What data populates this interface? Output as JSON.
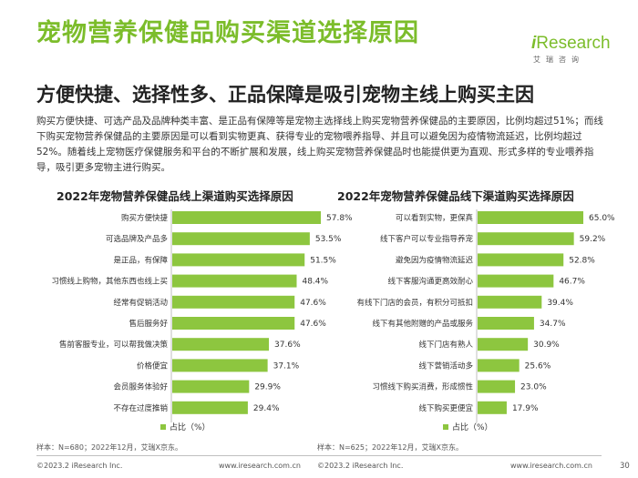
{
  "header": {
    "title": "宠物营养保健品购买渠道选择原因",
    "subtitle": "方便快捷、选择性多、正品保障是吸引宠物主线上购买主因",
    "paragraph": "购买方便快捷、可选产品及品牌种类丰富、是正品有保障等是宠物主选择线上购买宠物营养保健品的主要原因，比例均超过51%；而线下购买宠物营养保健品的主要原因是可以看到实物更真、获得专业的宠物喂养指导、并且可以避免因为疫情物流延迟，比例均超过52%。随着线上宠物医疗保健服务和平台的不断扩展和发展，线上购买宠物营养保健品时也能提供更为直观、形式多样的专业喂养指导，吸引更多宠物主进行购买。"
  },
  "logo": {
    "brand_prefix": "i",
    "brand_rest": "Research",
    "chinese": "艾瑞咨询"
  },
  "colors": {
    "accent": "#7cbd2b",
    "bar": "#8dc63f"
  },
  "chart_data": [
    {
      "type": "bar",
      "orientation": "horizontal",
      "title": "2022年宠物营养保健品线上渠道购买选择原因",
      "categories": [
        "购买方便快捷",
        "可选品牌及产品多",
        "是正品，有保障",
        "习惯线上购物，其他东西也线上买",
        "经常有促销活动",
        "售后服务好",
        "售前客服专业，可以帮我做决策",
        "价格便宜",
        "会员服务体验好",
        "不存在过度推销"
      ],
      "values": [
        57.8,
        53.5,
        51.5,
        48.4,
        47.6,
        47.6,
        37.6,
        37.1,
        29.9,
        29.4
      ],
      "unit": "%",
      "legend": "占比（%）",
      "xlim": [
        0,
        70
      ],
      "source": "样本：N=680；2022年12月，艾瑞X京东。"
    },
    {
      "type": "bar",
      "orientation": "horizontal",
      "title": "2022年宠物营养保健品线下渠道购买选择原因",
      "categories": [
        "可以看到实物，更保真",
        "线下客户可以专业指导养宠",
        "避免因为疫情物流延迟",
        "线下客服沟通更高效耐心",
        "有线下门店的会员，有积分可抵扣",
        "线下有其他附赠的产品或服务",
        "线下门店有熟人",
        "线下营销活动多",
        "习惯线下购买消费，形成惯性",
        "线下购买更便宜"
      ],
      "values": [
        65.0,
        59.2,
        52.8,
        46.7,
        39.4,
        34.7,
        30.9,
        25.6,
        23.0,
        17.9
      ],
      "unit": "%",
      "legend": "占比（%）",
      "xlim": [
        0,
        80
      ],
      "source": "样本：N=625；2022年12月，艾瑞X京东。"
    }
  ],
  "footer": {
    "copyright_left": "©2023.2 iResearch Inc.",
    "url_left": "www.iresearch.com.cn",
    "copyright_right": "©2023.2 iResearch Inc.",
    "url_right": "www.iresearch.com.cn",
    "page_number": "30"
  }
}
